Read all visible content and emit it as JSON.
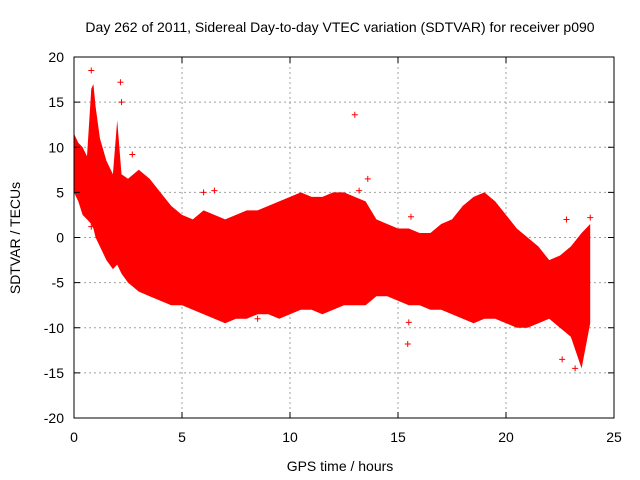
{
  "chart_data": {
    "type": "scatter",
    "title": "Day 262 of 2011, Sidereal Day-to-day VTEC variation (SDTVAR) for receiver p090",
    "xlabel": "GPS time / hours",
    "ylabel": "SDTVAR / TECUs",
    "xlim": [
      0,
      25
    ],
    "ylim": [
      -20,
      20
    ],
    "xticks": [
      0,
      5,
      10,
      15,
      20,
      25
    ],
    "yticks": [
      -20,
      -15,
      -10,
      -5,
      0,
      5,
      10,
      15,
      20
    ],
    "grid": true,
    "marker": "+",
    "series_color": "#ff0000",
    "series": [
      {
        "name": "SDTVAR",
        "envelope": {
          "x": [
            0.0,
            0.2,
            0.4,
            0.6,
            0.8,
            0.9,
            1.0,
            1.2,
            1.5,
            1.8,
            2.0,
            2.2,
            2.5,
            3.0,
            3.5,
            4.0,
            4.5,
            5.0,
            5.5,
            6.0,
            6.5,
            7.0,
            7.5,
            8.0,
            8.5,
            9.0,
            9.5,
            10.0,
            10.5,
            11.0,
            11.5,
            12.0,
            12.5,
            13.0,
            13.5,
            14.0,
            14.5,
            15.0,
            15.5,
            16.0,
            16.5,
            17.0,
            17.5,
            18.0,
            18.5,
            19.0,
            19.5,
            20.0,
            20.5,
            21.0,
            21.5,
            22.0,
            22.5,
            23.0,
            23.5,
            23.9
          ],
          "upper": [
            11.5,
            10.5,
            10.0,
            9.0,
            16.5,
            17.0,
            14.5,
            11.0,
            8.5,
            7.0,
            13.0,
            7.0,
            6.5,
            7.5,
            6.5,
            5.0,
            3.5,
            2.5,
            2.0,
            3.0,
            2.5,
            2.0,
            2.5,
            3.0,
            3.0,
            3.5,
            4.0,
            4.5,
            5.0,
            4.5,
            4.5,
            5.0,
            5.0,
            4.5,
            4.0,
            2.0,
            1.5,
            1.0,
            1.0,
            0.5,
            0.5,
            1.5,
            2.0,
            3.5,
            4.5,
            5.0,
            4.0,
            2.5,
            1.0,
            0.0,
            -1.0,
            -2.5,
            -2.0,
            -1.0,
            0.5,
            1.5
          ],
          "lower": [
            5.0,
            4.0,
            2.5,
            2.0,
            1.5,
            1.0,
            0.0,
            -1.0,
            -2.5,
            -3.5,
            -3.0,
            -4.0,
            -5.0,
            -6.0,
            -6.5,
            -7.0,
            -7.5,
            -7.5,
            -8.0,
            -8.5,
            -9.0,
            -9.5,
            -9.0,
            -9.0,
            -8.5,
            -8.5,
            -9.0,
            -8.5,
            -8.0,
            -8.0,
            -8.5,
            -8.0,
            -7.5,
            -7.5,
            -7.5,
            -6.5,
            -6.5,
            -7.0,
            -7.5,
            -7.5,
            -8.0,
            -8.0,
            -8.5,
            -9.0,
            -9.5,
            -9.0,
            -9.0,
            -9.5,
            -10.0,
            -10.0,
            -9.5,
            -9.0,
            -10.0,
            -11.0,
            -14.5,
            -9.5
          ]
        },
        "outliers": [
          {
            "x": 0.8,
            "y": 18.5
          },
          {
            "x": 2.15,
            "y": 17.2
          },
          {
            "x": 2.2,
            "y": 15.0
          },
          {
            "x": 2.7,
            "y": 9.2
          },
          {
            "x": 13.0,
            "y": 13.6
          },
          {
            "x": 13.6,
            "y": 6.5
          },
          {
            "x": 15.45,
            "y": -11.8
          },
          {
            "x": 15.5,
            "y": -9.4
          },
          {
            "x": 15.6,
            "y": 2.3
          },
          {
            "x": 0.8,
            "y": 1.2
          },
          {
            "x": 2.0,
            "y": -2.0
          },
          {
            "x": 23.9,
            "y": 2.2
          },
          {
            "x": 22.6,
            "y": -13.5
          },
          {
            "x": 23.2,
            "y": -14.5
          },
          {
            "x": 22.8,
            "y": 2.0
          },
          {
            "x": 6.0,
            "y": 5.0
          },
          {
            "x": 6.5,
            "y": 5.2
          },
          {
            "x": 8.5,
            "y": -9.0
          },
          {
            "x": 13.2,
            "y": 5.2
          },
          {
            "x": 17.0,
            "y": -7.5
          }
        ]
      }
    ]
  }
}
